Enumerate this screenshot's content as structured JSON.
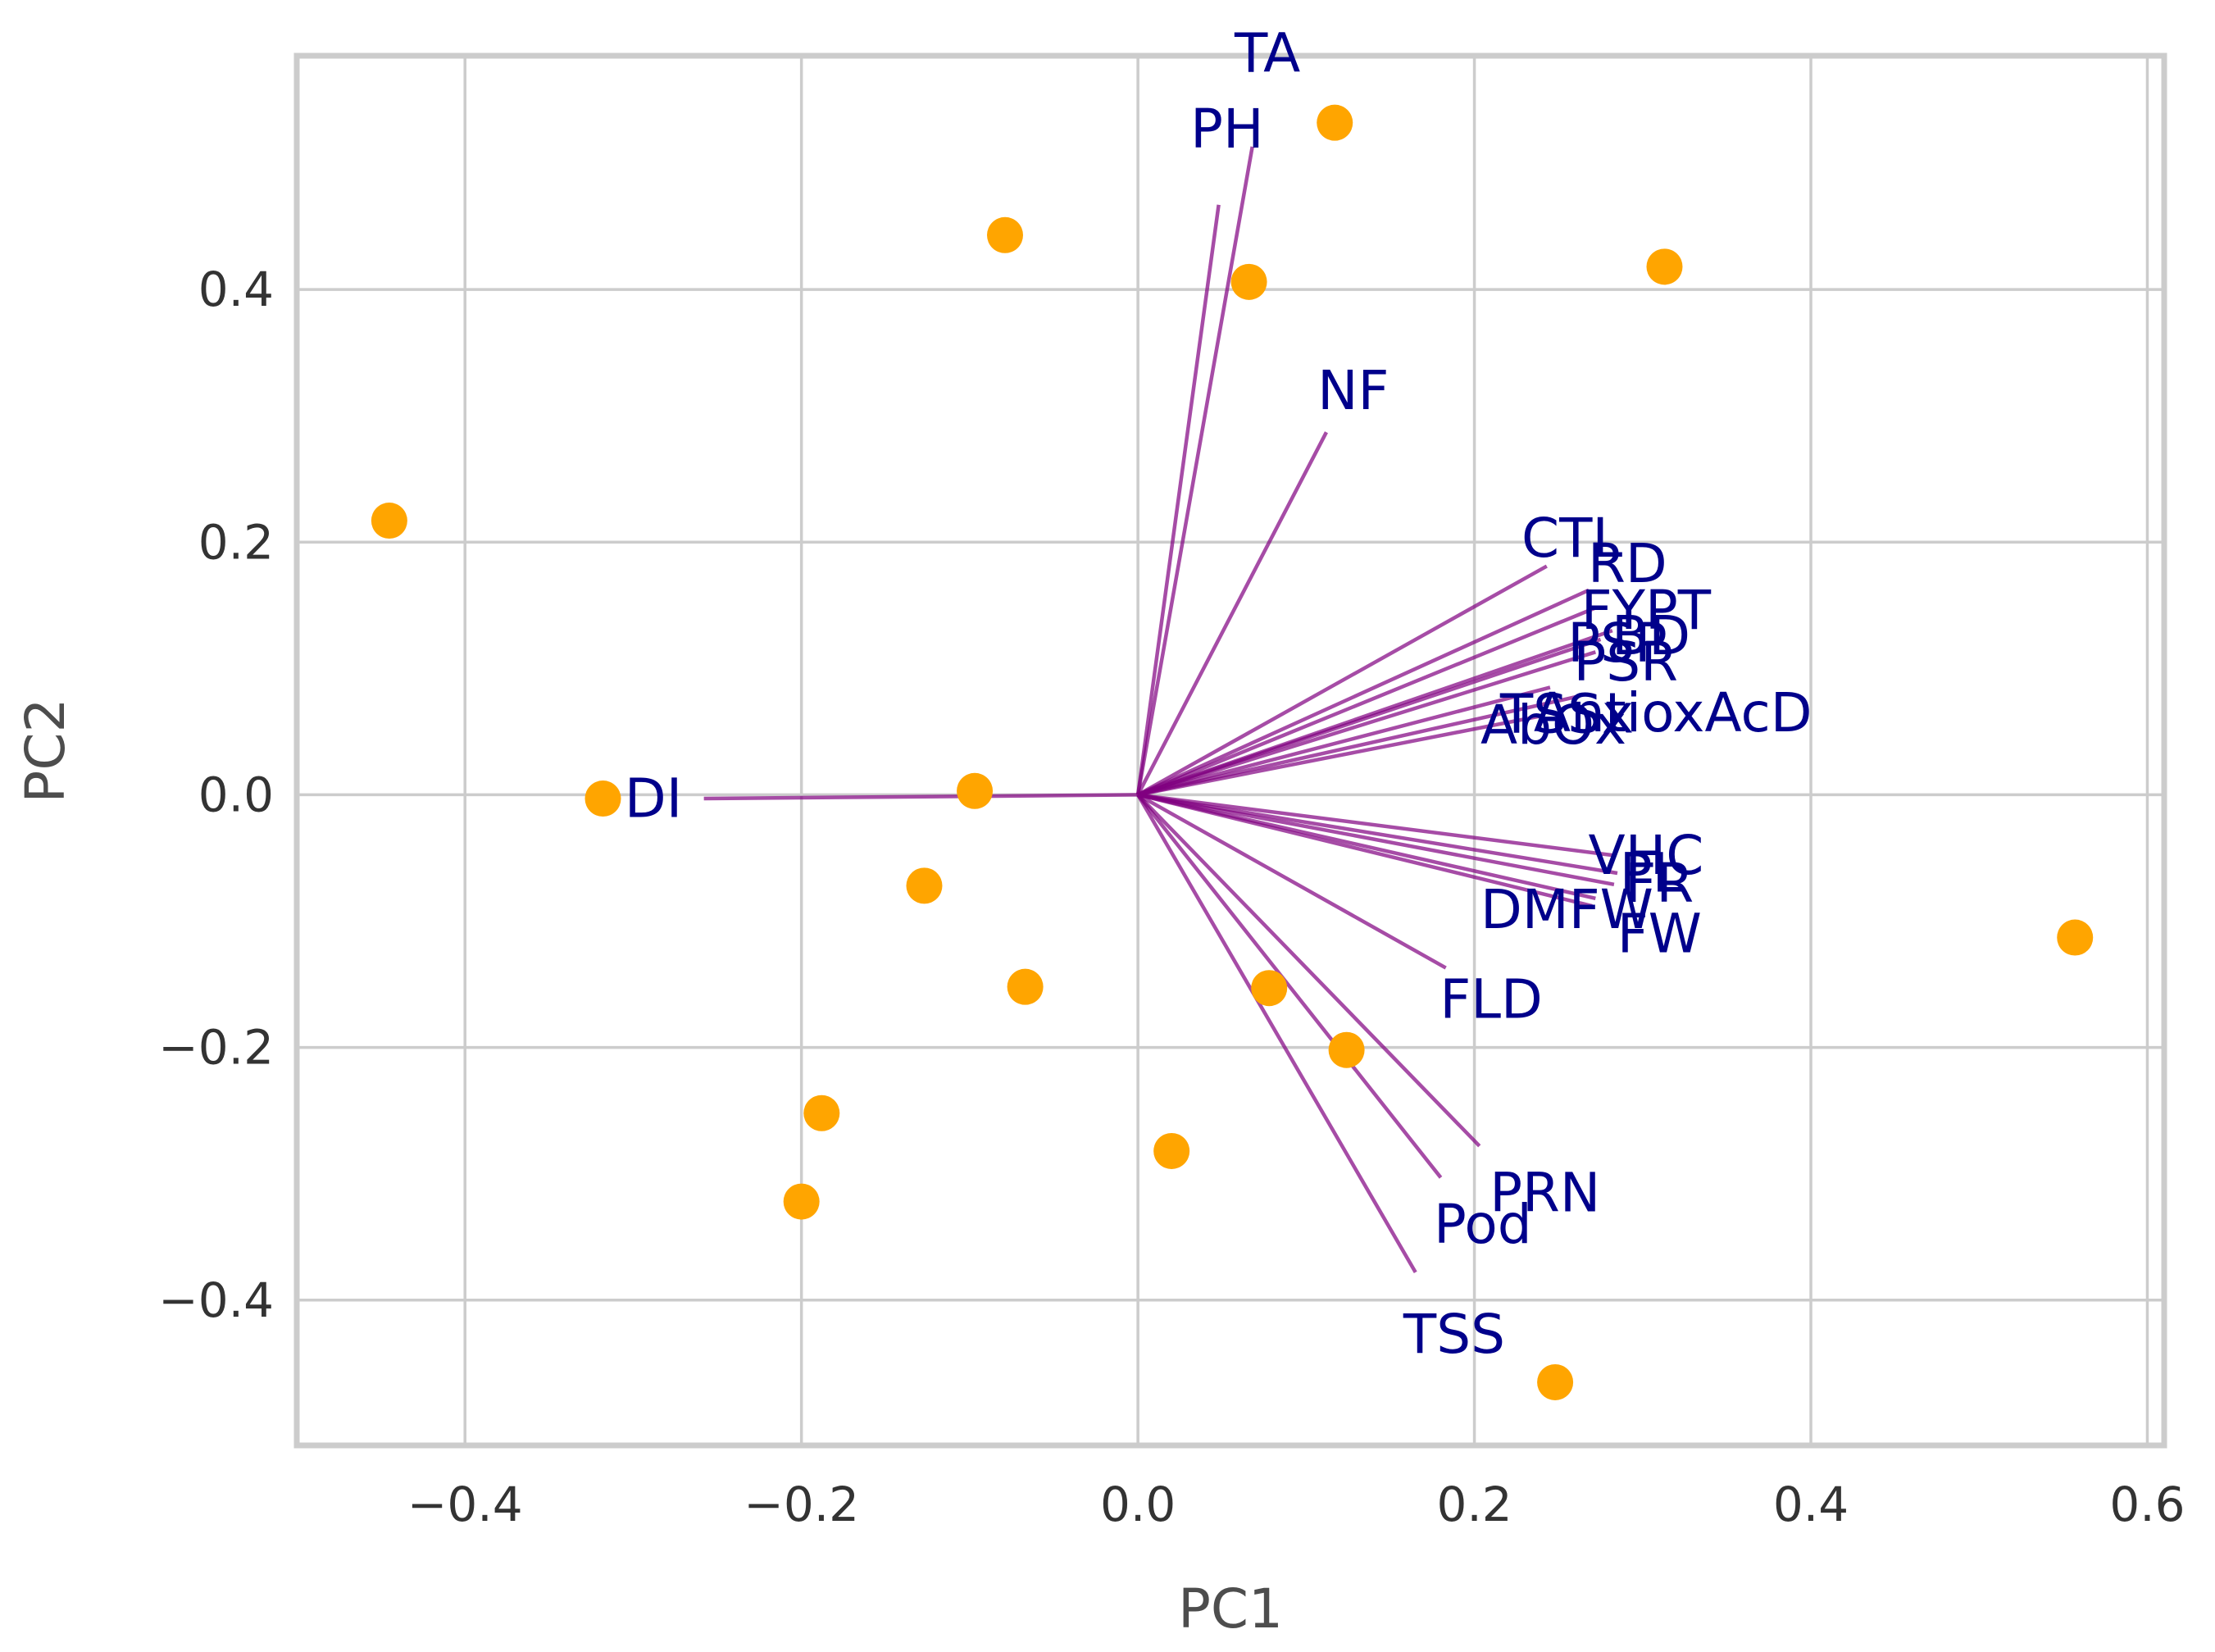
{
  "chart_data": {
    "type": "scatter",
    "xlabel": "PC1",
    "ylabel": "PC2",
    "xlim": [
      -0.5,
      0.61
    ],
    "ylim": [
      -0.515,
      0.585
    ],
    "xticks": [
      -0.4,
      -0.2,
      0.0,
      0.2,
      0.4,
      0.6
    ],
    "yticks": [
      -0.4,
      -0.2,
      0.0,
      0.2,
      0.4
    ],
    "xtick_labels": [
      "−0.4",
      "−0.2",
      "0.0",
      "0.2",
      "0.4",
      "0.6"
    ],
    "ytick_labels": [
      "−0.4",
      "−0.2",
      "0.0",
      "0.2",
      "0.4"
    ],
    "grid": true,
    "colors": {
      "points": "#ffa500",
      "loadings": "#800080",
      "labels": "#00008b"
    },
    "points": [
      {
        "x": -0.445,
        "y": 0.217
      },
      {
        "x": -0.318,
        "y": -0.003
      },
      {
        "x": -0.097,
        "y": 0.003
      },
      {
        "x": -0.127,
        "y": -0.072
      },
      {
        "x": -0.067,
        "y": -0.152
      },
      {
        "x": -0.188,
        "y": -0.252
      },
      {
        "x": -0.2,
        "y": -0.322
      },
      {
        "x": -0.079,
        "y": 0.443
      },
      {
        "x": 0.066,
        "y": 0.406
      },
      {
        "x": 0.117,
        "y": 0.532
      },
      {
        "x": 0.313,
        "y": 0.418
      },
      {
        "x": 0.078,
        "y": -0.153
      },
      {
        "x": 0.124,
        "y": -0.202
      },
      {
        "x": 0.02,
        "y": -0.282
      },
      {
        "x": 0.248,
        "y": -0.465
      },
      {
        "x": 0.557,
        "y": -0.113
      }
    ],
    "loadings": [
      {
        "label": "TA",
        "x": 0.068,
        "y": 0.513,
        "lx": 0.077,
        "ly": 0.587
      },
      {
        "label": "PH",
        "x": 0.048,
        "y": 0.467,
        "lx": 0.053,
        "ly": 0.527
      },
      {
        "label": "NF",
        "x": 0.112,
        "y": 0.287,
        "lx": 0.128,
        "ly": 0.32
      },
      {
        "label": "CTL",
        "x": 0.243,
        "y": 0.181,
        "lx": 0.258,
        "ly": 0.203
      },
      {
        "label": "RD",
        "x": 0.268,
        "y": 0.162,
        "lx": 0.291,
        "ly": 0.183
      },
      {
        "label": "FYPT",
        "x": 0.272,
        "y": 0.148,
        "lx": 0.302,
        "ly": 0.146
      },
      {
        "label": "BD",
        "x": 0.282,
        "y": 0.13,
        "lx": 0.305,
        "ly": 0.126
      },
      {
        "label": "PSP",
        "x": 0.275,
        "y": 0.123,
        "lx": 0.285,
        "ly": 0.12
      },
      {
        "label": "PSR",
        "x": 0.272,
        "y": 0.113,
        "lx": 0.29,
        "ly": 0.105
      },
      {
        "label": "AntioxAcD",
        "x": 0.262,
        "y": 0.078,
        "lx": 0.318,
        "ly": 0.065
      },
      {
        "label": "TSSx",
        "x": 0.245,
        "y": 0.085,
        "lx": 0.255,
        "ly": 0.064
      },
      {
        "label": "AbOx",
        "x": 0.238,
        "y": 0.062,
        "lx": 0.247,
        "ly": 0.055
      },
      {
        "label": "DI",
        "x": -0.258,
        "y": -0.003,
        "lx": -0.288,
        "ly": -0.003
      },
      {
        "label": "VHC",
        "x": 0.283,
        "y": -0.048,
        "lx": 0.302,
        "ly": -0.048
      },
      {
        "label": "PL",
        "x": 0.285,
        "y": -0.062,
        "lx": 0.305,
        "ly": -0.062
      },
      {
        "label": "FR",
        "x": 0.283,
        "y": -0.071,
        "lx": 0.31,
        "ly": -0.07
      },
      {
        "label": "DMFW",
        "x": 0.272,
        "y": -0.082,
        "lx": 0.255,
        "ly": -0.091
      },
      {
        "label": "FW",
        "x": 0.27,
        "y": -0.088,
        "lx": 0.31,
        "ly": -0.11
      },
      {
        "label": "FLD",
        "x": 0.183,
        "y": -0.137,
        "lx": 0.21,
        "ly": -0.162
      },
      {
        "label": "PRN",
        "x": 0.203,
        "y": -0.278,
        "lx": 0.242,
        "ly": -0.315
      },
      {
        "label": "Pod",
        "x": 0.18,
        "y": -0.303,
        "lx": 0.205,
        "ly": -0.34
      },
      {
        "label": "TSS",
        "x": 0.165,
        "y": -0.378,
        "lx": 0.188,
        "ly": -0.427
      }
    ]
  }
}
